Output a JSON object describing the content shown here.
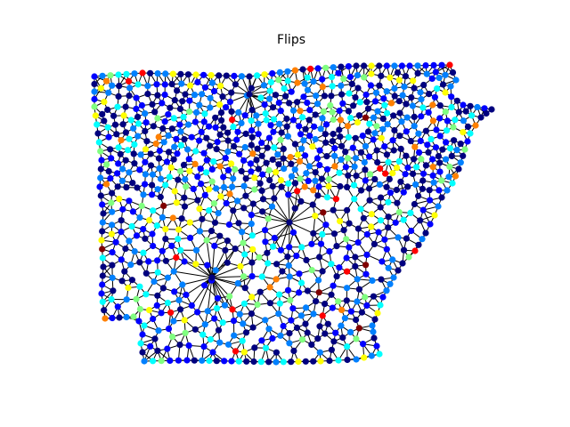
{
  "figure": {
    "title": "Flips"
  },
  "graph": {
    "description_visible": "",
    "edge_color": "#000000",
    "colormap": [
      "#00007f",
      "#0000ff",
      "#0080ff",
      "#00ffff",
      "#80ff80",
      "#ffff00",
      "#ff8000",
      "#ff0000",
      "#7f0000"
    ],
    "colormap_name": "jet"
  }
}
